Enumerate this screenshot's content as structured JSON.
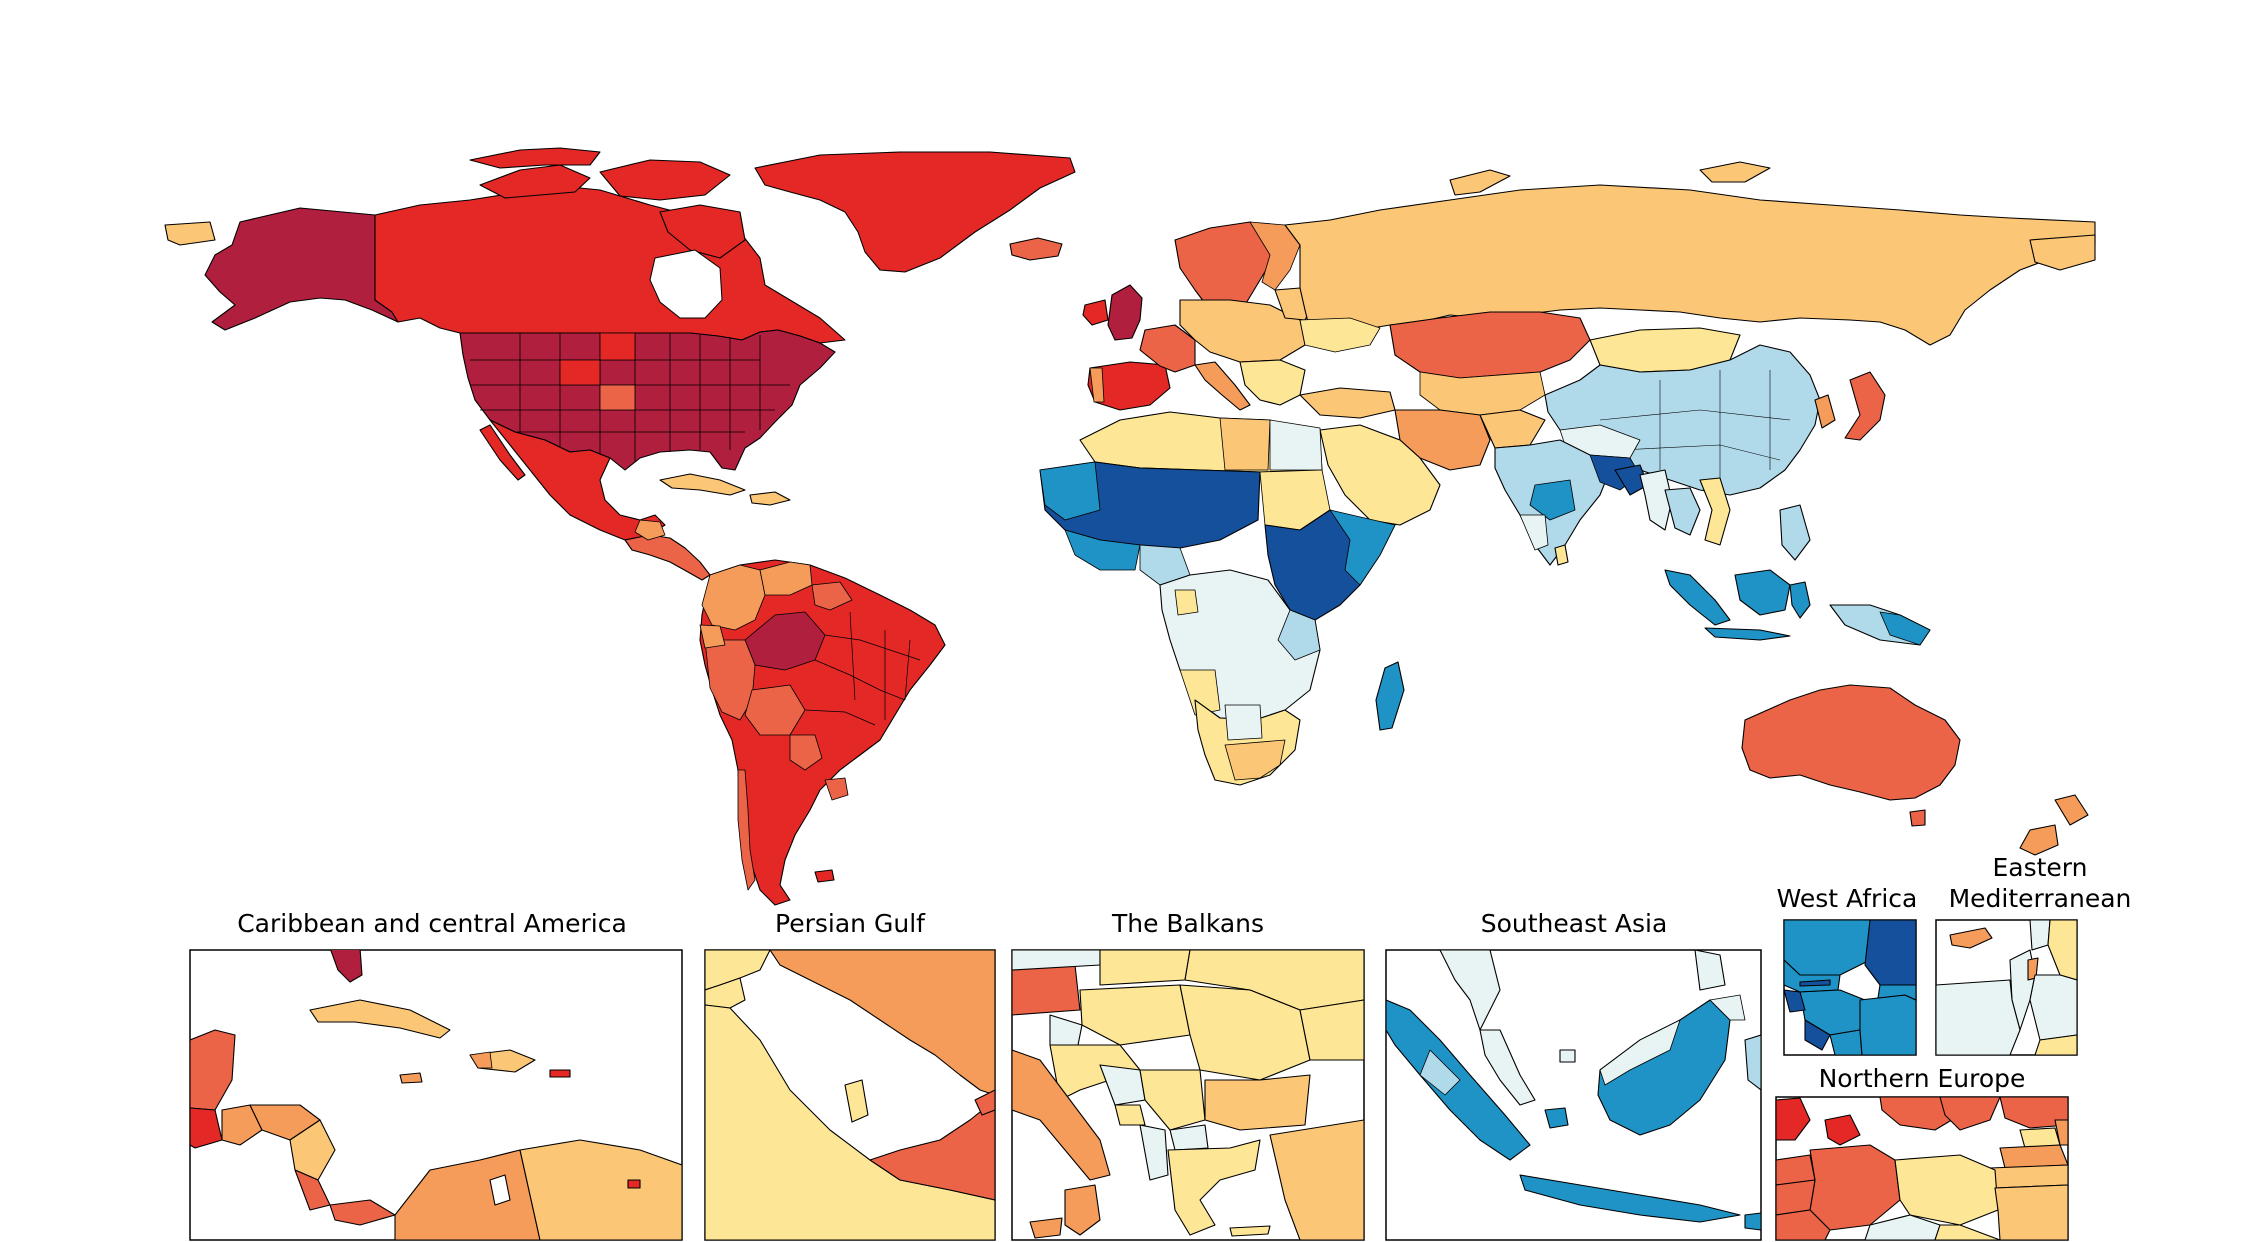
{
  "map": {
    "type": "choropleth world map with regional insets",
    "colors": {
      "dark_red": "#b01f3e",
      "red": "#e32826",
      "red_orange": "#ec6447",
      "orange": "#f59c5a",
      "light_orange": "#fcc677",
      "pale_yellow": "#fde696",
      "off_white": "#e8f4f3",
      "light_blue": "#b0d9ea",
      "blue": "#1f93c6",
      "dark_blue": "#15509c",
      "border": "#000000"
    },
    "legend": null
  },
  "insets": [
    {
      "label": "Caribbean and central America"
    },
    {
      "label": "Persian Gulf"
    },
    {
      "label": "The Balkans"
    },
    {
      "label": "Southeast Asia"
    },
    {
      "label": "West Africa"
    },
    {
      "label_line1": "Eastern",
      "label_line2": "Mediterranean"
    },
    {
      "label": "Northern Europe"
    }
  ]
}
